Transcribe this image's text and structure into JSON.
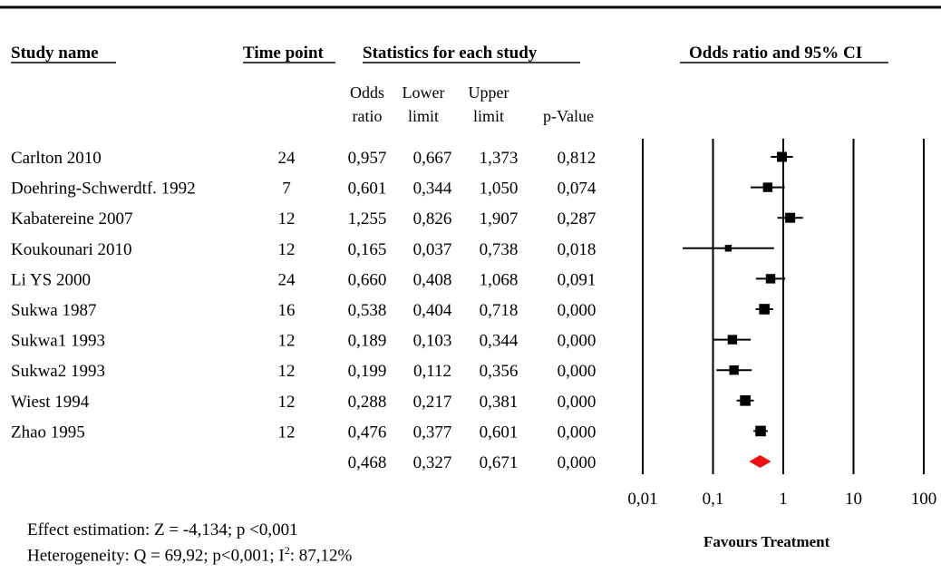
{
  "headers": {
    "study_name": "Study name",
    "time_point": "Time point",
    "statistics": "Statistics for each study",
    "or_ci": "Odds ratio and 95% CI"
  },
  "subheaders": [
    [
      "Odds",
      "ratio"
    ],
    [
      "Lower",
      "limit"
    ],
    [
      "Upper",
      "limit"
    ],
    [
      "",
      "p-Value"
    ]
  ],
  "chart_data": {
    "type": "forest",
    "title": "Odds ratio and 95% CI",
    "x_scale": "log",
    "xlim": [
      0.01,
      100
    ],
    "x_ticks": [
      "0,01",
      "0,1",
      "1",
      "10",
      "100"
    ],
    "x_tick_values": [
      0.01,
      0.1,
      1,
      10,
      100
    ],
    "studies": [
      {
        "name": "Carlton 2010",
        "time_point": "24",
        "or": "0,957",
        "lower": "0,667",
        "upper": "1,373",
        "p": "0,812",
        "or_v": 0.957,
        "lower_v": 0.667,
        "upper_v": 1.373,
        "weight": 1.0
      },
      {
        "name": "Doehring-Schwerdtf. 1992",
        "time_point": "7",
        "or": "0,601",
        "lower": "0,344",
        "upper": "1,050",
        "p": "0,074",
        "or_v": 0.601,
        "lower_v": 0.344,
        "upper_v": 1.05,
        "weight": 0.9
      },
      {
        "name": "Kabatereine 2007",
        "time_point": "12",
        "or": "1,255",
        "lower": "0,826",
        "upper": "1,907",
        "p": "0,287",
        "or_v": 1.255,
        "lower_v": 0.826,
        "upper_v": 1.907,
        "weight": 1.0
      },
      {
        "name": "Koukounari 2010",
        "time_point": "12",
        "or": "0,165",
        "lower": "0,037",
        "upper": "0,738",
        "p": "0,018",
        "or_v": 0.165,
        "lower_v": 0.037,
        "upper_v": 0.738,
        "weight": 0.4
      },
      {
        "name": "Li YS 2000",
        "time_point": "24",
        "or": "0,660",
        "lower": "0,408",
        "upper": "1,068",
        "p": "0,091",
        "or_v": 0.66,
        "lower_v": 0.408,
        "upper_v": 1.068,
        "weight": 0.9
      },
      {
        "name": "Sukwa 1987",
        "time_point": "16",
        "or": "0,538",
        "lower": "0,404",
        "upper": "0,718",
        "p": "0,000",
        "or_v": 0.538,
        "lower_v": 0.404,
        "upper_v": 0.718,
        "weight": 1.1
      },
      {
        "name": "Sukwa1 1993",
        "time_point": "12",
        "or": "0,189",
        "lower": "0,103",
        "upper": "0,344",
        "p": "0,000",
        "or_v": 0.189,
        "lower_v": 0.103,
        "upper_v": 0.344,
        "weight": 0.9
      },
      {
        "name": "Sukwa2 1993",
        "time_point": "12",
        "or": "0,199",
        "lower": "0,112",
        "upper": "0,356",
        "p": "0,000",
        "or_v": 0.199,
        "lower_v": 0.112,
        "upper_v": 0.356,
        "weight": 0.9
      },
      {
        "name": "Wiest 1994",
        "time_point": "12",
        "or": "0,288",
        "lower": "0,217",
        "upper": "0,381",
        "p": "0,000",
        "or_v": 0.288,
        "lower_v": 0.217,
        "upper_v": 0.381,
        "weight": 1.1
      },
      {
        "name": "Zhao 1995",
        "time_point": "12",
        "or": "0,476",
        "lower": "0,377",
        "upper": "0,601",
        "p": "0,000",
        "or_v": 0.476,
        "lower_v": 0.377,
        "upper_v": 0.601,
        "weight": 1.1
      }
    ],
    "summary": {
      "or": "0,468",
      "lower": "0,327",
      "upper": "0,671",
      "p": "0,000",
      "or_v": 0.468,
      "lower_v": 0.327,
      "upper_v": 0.671,
      "color": "#ee1111"
    },
    "favours_label": "Favours Treatment"
  },
  "footer": {
    "effect": "Effect estimation: Z = -4,134; p <0,001",
    "heterogeneity_prefix": "Heterogeneity: Q = 69,92; p<0,001; I",
    "heterogeneity_sup": "2",
    "heterogeneity_suffix": ": 87,12%"
  }
}
